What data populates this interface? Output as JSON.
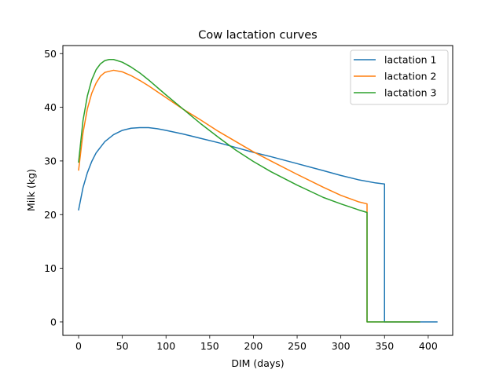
{
  "chart_data": {
    "type": "line",
    "title": "Cow lactation curves",
    "xlabel": "DIM (days)",
    "ylabel": "Milk (kg)",
    "xlim": [
      -18,
      428
    ],
    "ylim": [
      -2.5,
      51.5
    ],
    "xticks": [
      0,
      50,
      100,
      150,
      200,
      250,
      300,
      350,
      400
    ],
    "xtick_labels": [
      "0",
      "50",
      "100",
      "150",
      "200",
      "250",
      "300",
      "350",
      "400"
    ],
    "yticks": [
      0,
      10,
      20,
      30,
      40,
      50
    ],
    "ytick_labels": [
      "0",
      "10",
      "20",
      "30",
      "40",
      "50"
    ],
    "grid": false,
    "legend_position": "top-right",
    "series": [
      {
        "name": "lactation 1",
        "color": "#1f77b4",
        "x": [
          0,
          5,
          10,
          15,
          20,
          30,
          40,
          50,
          60,
          70,
          80,
          90,
          100,
          120,
          140,
          160,
          180,
          200,
          220,
          250,
          280,
          300,
          320,
          340,
          350,
          350,
          360,
          380,
          400,
          410
        ],
        "y": [
          20.9,
          25.0,
          27.8,
          29.9,
          31.5,
          33.6,
          34.9,
          35.7,
          36.1,
          36.2,
          36.2,
          36.0,
          35.7,
          35.0,
          34.2,
          33.4,
          32.5,
          31.6,
          30.8,
          29.5,
          28.2,
          27.3,
          26.5,
          25.9,
          25.7,
          0,
          0,
          0,
          0,
          0
        ]
      },
      {
        "name": "lactation 2",
        "color": "#ff7f0e",
        "x": [
          0,
          5,
          10,
          15,
          20,
          25,
          30,
          40,
          50,
          60,
          70,
          80,
          100,
          120,
          140,
          160,
          180,
          200,
          220,
          250,
          280,
          300,
          320,
          330,
          330,
          340,
          360,
          380,
          390
        ],
        "y": [
          28.3,
          35.2,
          39.7,
          42.6,
          44.5,
          45.8,
          46.5,
          46.9,
          46.6,
          45.9,
          45.0,
          44.0,
          41.8,
          39.6,
          37.6,
          35.5,
          33.6,
          31.7,
          30.0,
          27.5,
          25.1,
          23.6,
          22.4,
          22.0,
          0,
          0,
          0,
          0,
          0
        ]
      },
      {
        "name": "lactation 3",
        "color": "#2ca02c",
        "x": [
          0,
          5,
          10,
          15,
          20,
          25,
          30,
          35,
          40,
          50,
          60,
          70,
          80,
          100,
          120,
          140,
          160,
          180,
          200,
          220,
          250,
          280,
          300,
          320,
          330,
          330,
          340,
          360,
          380,
          390
        ],
        "y": [
          29.8,
          37.5,
          42.1,
          45.1,
          47.0,
          48.1,
          48.7,
          48.9,
          48.9,
          48.4,
          47.5,
          46.4,
          45.1,
          42.3,
          39.6,
          36.9,
          34.4,
          32.0,
          29.9,
          28.0,
          25.5,
          23.2,
          22.0,
          20.9,
          20.4,
          0,
          0,
          0,
          0,
          0
        ]
      }
    ]
  }
}
